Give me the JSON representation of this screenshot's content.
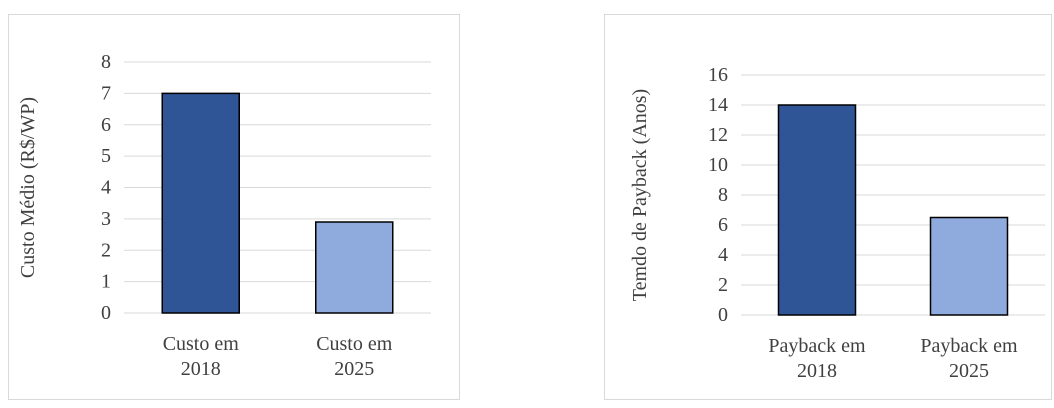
{
  "chart_data": [
    {
      "type": "bar",
      "categories": [
        [
          "Custo em",
          "2018"
        ],
        [
          "Custo em",
          "2025"
        ]
      ],
      "values": [
        7.0,
        2.9
      ],
      "colors": [
        "#2f5597",
        "#8faadc"
      ],
      "xlabel": "",
      "ylabel": "Custo Médio (R$/WP)",
      "ylim": [
        0,
        8
      ],
      "yticks": [
        0,
        1,
        2,
        3,
        4,
        5,
        6,
        7,
        8
      ],
      "grid": true,
      "legend": "none"
    },
    {
      "type": "bar",
      "categories": [
        [
          "Payback em",
          "2018"
        ],
        [
          "Payback em",
          "2025"
        ]
      ],
      "values": [
        14,
        6.5
      ],
      "colors": [
        "#2f5597",
        "#8faadc"
      ],
      "xlabel": "",
      "ylabel": "Temdo de Payback (Anos)",
      "ylim": [
        0,
        16
      ],
      "yticks": [
        0,
        2,
        4,
        6,
        8,
        10,
        12,
        14,
        16
      ],
      "grid": true,
      "legend": "none"
    }
  ]
}
